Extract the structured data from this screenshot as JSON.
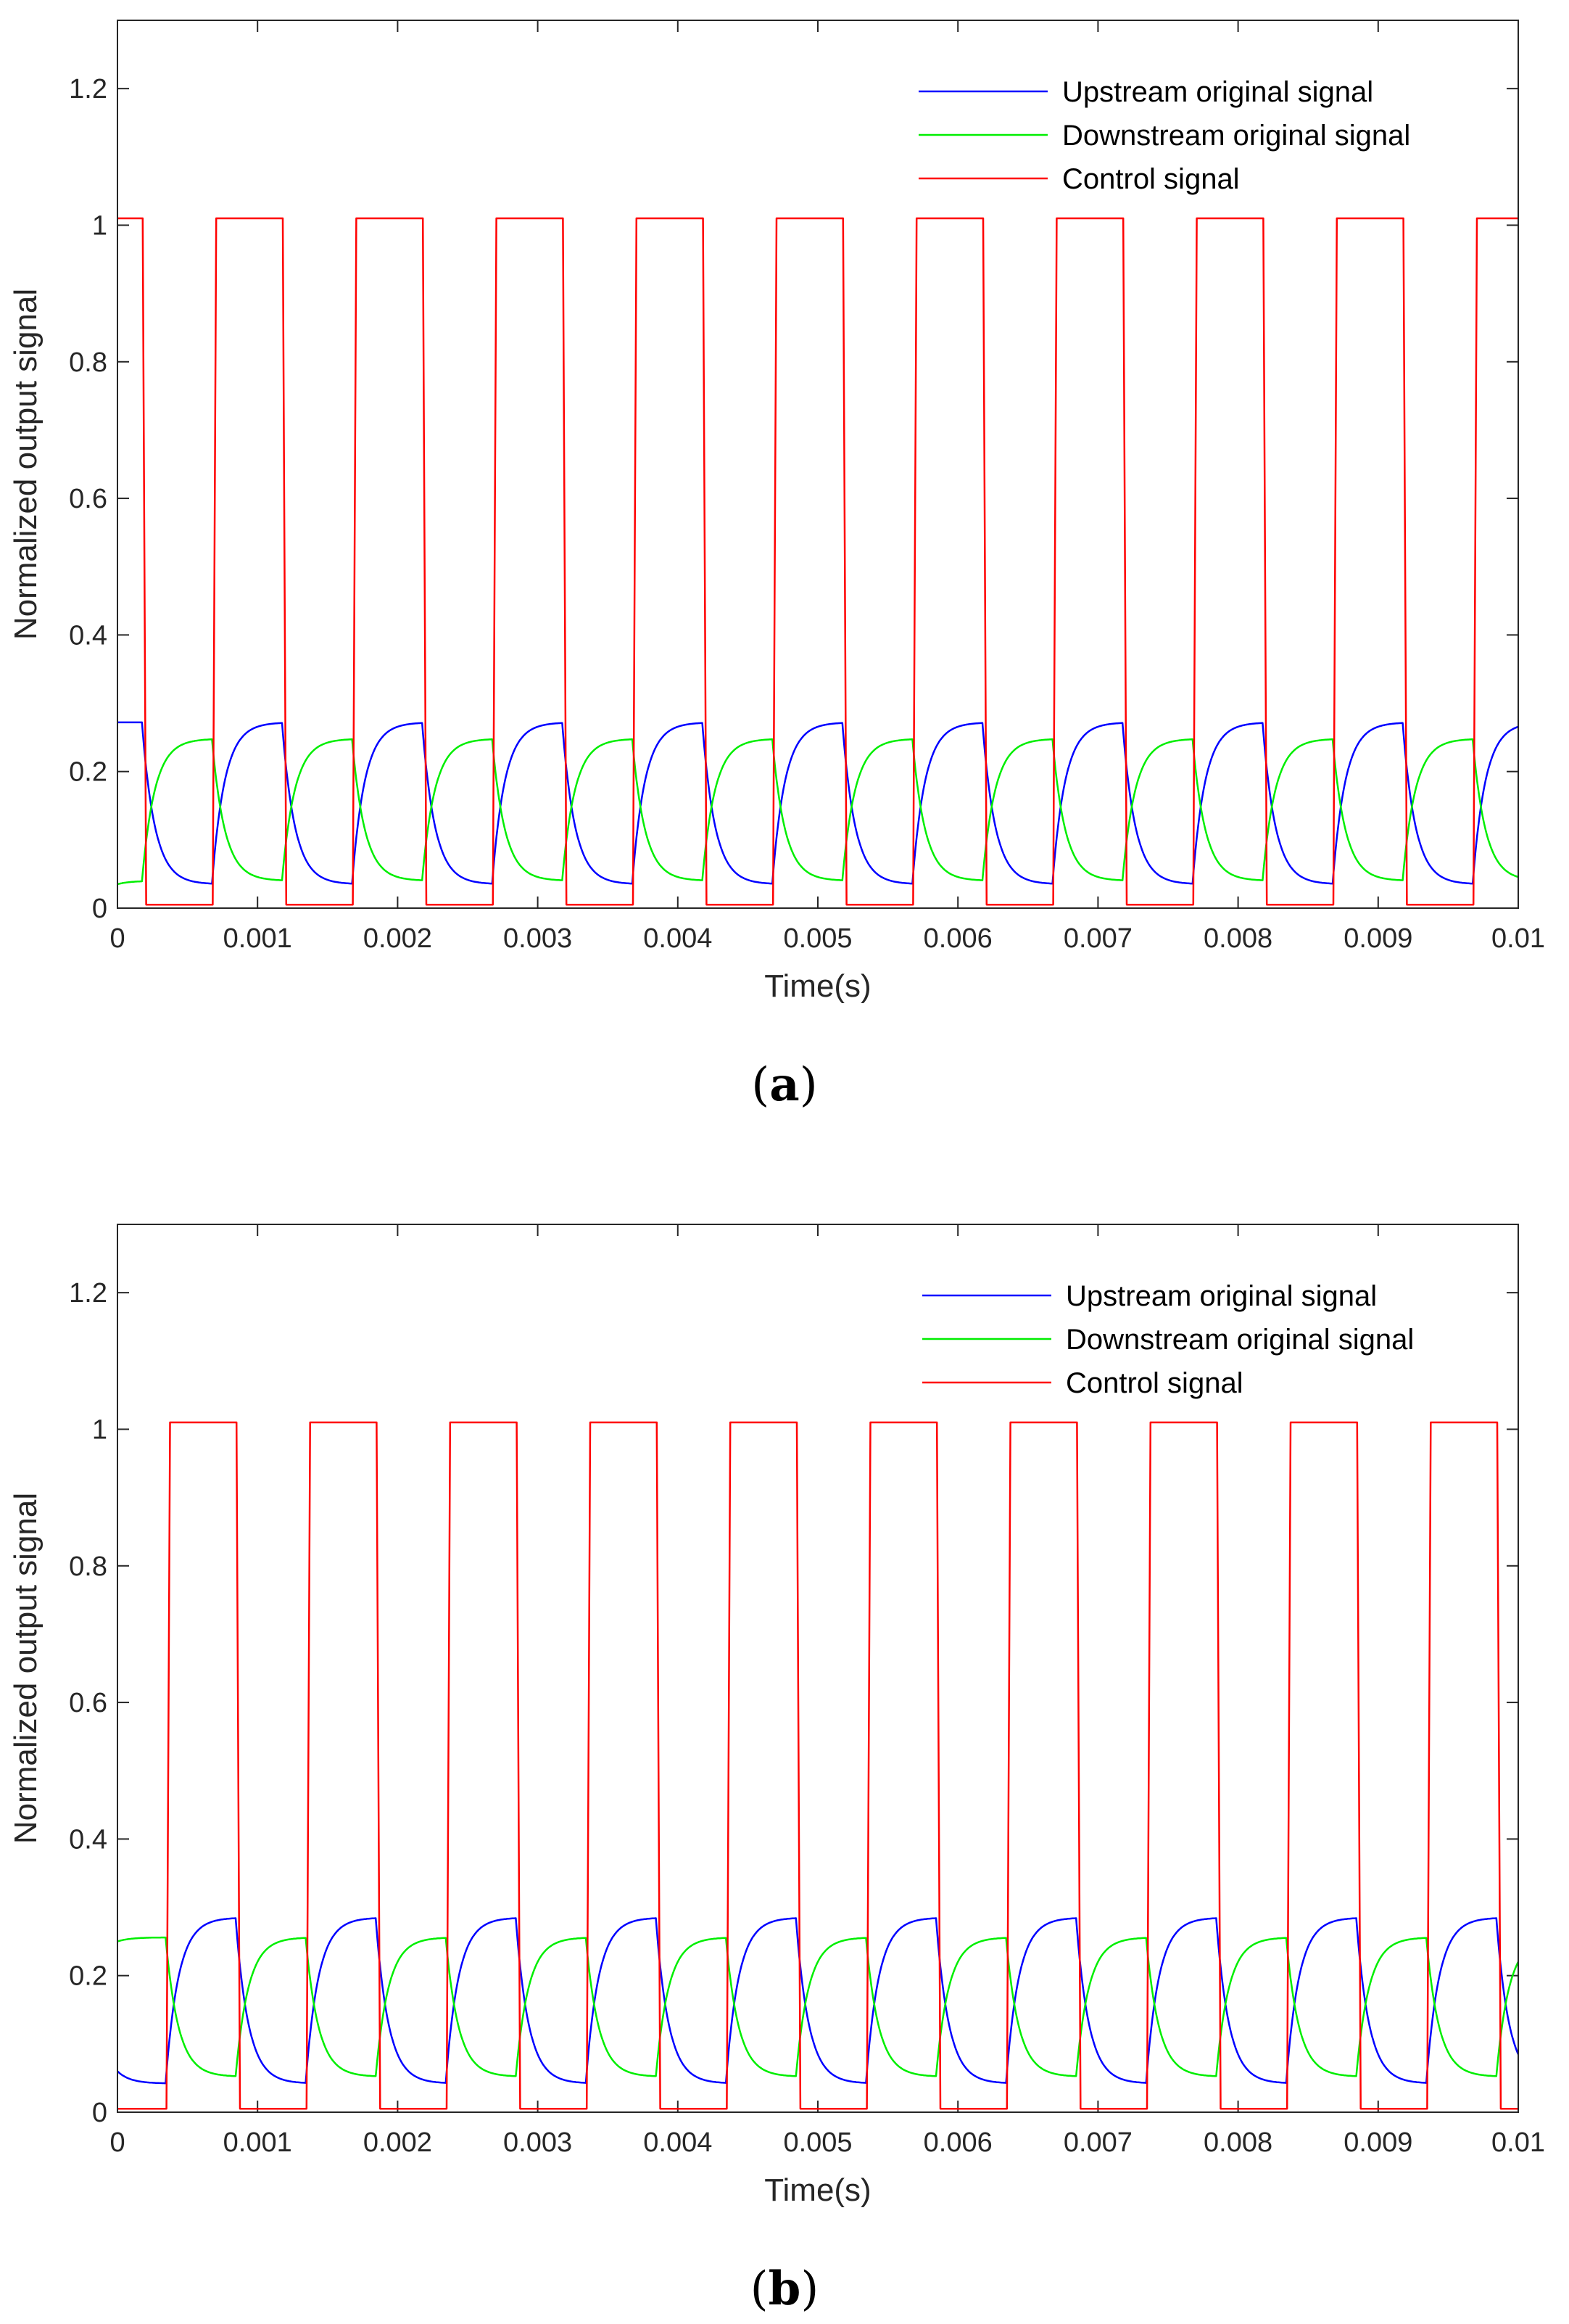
{
  "colors": {
    "upstream": "#0000ff",
    "downstream": "#00ee00",
    "control": "#ff0000",
    "axis": "#262626"
  },
  "chart_data": [
    {
      "type": "line",
      "panel_label": "a",
      "xlabel": "Time(s)",
      "ylabel": "Normalized output signal",
      "xlim": [
        0,
        0.01
      ],
      "ylim": [
        0,
        1.3
      ],
      "x_ticks": [
        0,
        0.001,
        0.002,
        0.003,
        0.004,
        0.005,
        0.006,
        0.007,
        0.008,
        0.009,
        0.01
      ],
      "x_tick_labels": [
        "0",
        "0.001",
        "0.002",
        "0.003",
        "0.004",
        "0.005",
        "0.006",
        "0.007",
        "0.008",
        "0.009",
        "0.01"
      ],
      "y_ticks": [
        0,
        0.2,
        0.4,
        0.6,
        0.8,
        1.0,
        1.2
      ],
      "y_tick_labels": [
        "0",
        "0.2",
        "0.4",
        "0.6",
        "0.8",
        "1",
        "1.2"
      ],
      "legend_position": "top-right",
      "series": [
        {
          "name": "Upstream original signal",
          "color": "#0000ff",
          "kind": "rc",
          "high": 0.272,
          "low": 0.035,
          "tau": 9e-05,
          "start_value": 0.272
        },
        {
          "name": "Downstream original signal",
          "color": "#00ee00",
          "kind": "rc_inverse",
          "high": 0.248,
          "low": 0.04,
          "tau": 9e-05,
          "start_value": 0.035
        },
        {
          "name": "Control signal",
          "color": "#ff0000",
          "kind": "square",
          "high": 1.01,
          "low": 0.005,
          "start_state": "high",
          "edges": [
            0.00018,
            0.00068,
            0.00118,
            0.00168,
            0.00218,
            0.00268,
            0.00318,
            0.00368,
            0.00418,
            0.00468,
            0.00518,
            0.00568,
            0.00618,
            0.00668,
            0.00718,
            0.00768,
            0.00818,
            0.00868,
            0.00918,
            0.00968
          ]
        }
      ]
    },
    {
      "type": "line",
      "panel_label": "b",
      "xlabel": "Time(s)",
      "ylabel": "Normalized output signal",
      "xlim": [
        0,
        0.01
      ],
      "ylim": [
        0,
        1.3
      ],
      "x_ticks": [
        0,
        0.001,
        0.002,
        0.003,
        0.004,
        0.005,
        0.006,
        0.007,
        0.008,
        0.009,
        0.01
      ],
      "x_tick_labels": [
        "0",
        "0.001",
        "0.002",
        "0.003",
        "0.004",
        "0.005",
        "0.006",
        "0.007",
        "0.008",
        "0.009",
        "0.01"
      ],
      "y_ticks": [
        0,
        0.2,
        0.4,
        0.6,
        0.8,
        1.0,
        1.2
      ],
      "y_tick_labels": [
        "0",
        "0.2",
        "0.4",
        "0.6",
        "0.8",
        "1",
        "1.2"
      ],
      "legend_position": "top-right",
      "series": [
        {
          "name": "Upstream original signal",
          "color": "#0000ff",
          "kind": "rc",
          "high": 0.285,
          "low": 0.042,
          "tau": 9e-05,
          "start_value": 0.06
        },
        {
          "name": "Downstream original signal",
          "color": "#00ee00",
          "kind": "rc_inverse",
          "high": 0.256,
          "low": 0.052,
          "tau": 9e-05,
          "start_value": 0.25
        },
        {
          "name": "Control signal",
          "color": "#ff0000",
          "kind": "square",
          "high": 1.01,
          "low": 0.005,
          "start_state": "low",
          "edges": [
            0.00035,
            0.00085,
            0.00135,
            0.00185,
            0.00235,
            0.00285,
            0.00335,
            0.00385,
            0.00435,
            0.00485,
            0.00535,
            0.00585,
            0.00635,
            0.00685,
            0.00735,
            0.00785,
            0.00835,
            0.00885,
            0.00935,
            0.00985
          ]
        }
      ]
    }
  ]
}
